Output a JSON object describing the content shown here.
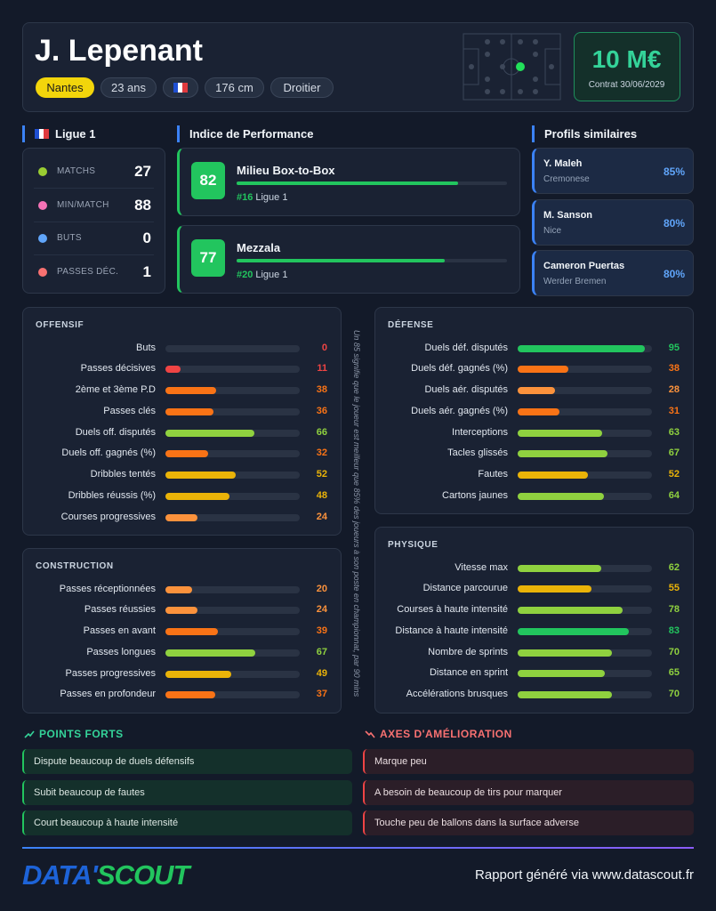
{
  "header": {
    "name": "J. Lepenant",
    "club": "Nantes",
    "age": "23 ans",
    "height": "176 cm",
    "foot": "Droitier",
    "value": "10 M€",
    "contract": "Contrat 30/06/2029"
  },
  "league": {
    "title": "Ligue 1",
    "stats": [
      {
        "label": "MATCHS",
        "value": 27
      },
      {
        "label": "MIN/MATCH",
        "value": 88
      },
      {
        "label": "BUTS",
        "value": 0
      },
      {
        "label": "PASSES DÉC.",
        "value": 1
      }
    ]
  },
  "performance": {
    "title": "Indice de Performance",
    "roles": [
      {
        "score": 82,
        "name": "Milieu Box-to-Box",
        "rank": "#16",
        "league": "Ligue 1"
      },
      {
        "score": 77,
        "name": "Mezzala",
        "rank": "#20",
        "league": "Ligue 1"
      }
    ]
  },
  "similar": {
    "title": "Profils similaires",
    "players": [
      {
        "name": "Y. Maleh",
        "club": "Cremonese",
        "match": "85%"
      },
      {
        "name": "M. Sanson",
        "club": "Nice",
        "match": "80%"
      },
      {
        "name": "Cameron Puertas",
        "club": "Werder Bremen",
        "match": "80%"
      }
    ]
  },
  "sections": [
    {
      "title": "OFFENSIF",
      "stats": [
        {
          "label": "Buts",
          "value": 0,
          "color": "#ef4444"
        },
        {
          "label": "Passes décisives",
          "value": 11,
          "color": "#ef4444"
        },
        {
          "label": "2ème et 3ème P.D",
          "value": 38,
          "color": "#f97316"
        },
        {
          "label": "Passes clés",
          "value": 36,
          "color": "#f97316"
        },
        {
          "label": "Duels off. disputés",
          "value": 66,
          "color": "#8fd13f"
        },
        {
          "label": "Duels off. gagnés (%)",
          "value": 32,
          "color": "#f97316"
        },
        {
          "label": "Dribbles tentés",
          "value": 52,
          "color": "#eab308"
        },
        {
          "label": "Dribbles réussis (%)",
          "value": 48,
          "color": "#eab308"
        },
        {
          "label": "Courses progressives",
          "value": 24,
          "color": "#fb923c"
        }
      ]
    },
    {
      "title": "CONSTRUCTION",
      "stats": [
        {
          "label": "Passes réceptionnées",
          "value": 20,
          "color": "#fb923c"
        },
        {
          "label": "Passes réussies",
          "value": 24,
          "color": "#fb923c"
        },
        {
          "label": "Passes en avant",
          "value": 39,
          "color": "#f97316"
        },
        {
          "label": "Passes longues",
          "value": 67,
          "color": "#8fd13f"
        },
        {
          "label": "Passes progressives",
          "value": 49,
          "color": "#eab308"
        },
        {
          "label": "Passes en profondeur",
          "value": 37,
          "color": "#f97316"
        }
      ]
    },
    {
      "title": "DÉFENSE",
      "stats": [
        {
          "label": "Duels déf. disputés",
          "value": 95,
          "color": "#22c55e"
        },
        {
          "label": "Duels déf. gagnés (%)",
          "value": 38,
          "color": "#f97316"
        },
        {
          "label": "Duels aér. disputés",
          "value": 28,
          "color": "#fb923c"
        },
        {
          "label": "Duels aér. gagnés (%)",
          "value": 31,
          "color": "#f97316"
        },
        {
          "label": "Interceptions",
          "value": 63,
          "color": "#8fd13f"
        },
        {
          "label": "Tacles glissés",
          "value": 67,
          "color": "#8fd13f"
        },
        {
          "label": "Fautes",
          "value": 52,
          "color": "#eab308"
        },
        {
          "label": "Cartons jaunes",
          "value": 64,
          "color": "#8fd13f"
        }
      ]
    },
    {
      "title": "PHYSIQUE",
      "stats": [
        {
          "label": "Vitesse max",
          "value": 62,
          "color": "#8fd13f"
        },
        {
          "label": "Distance parcourue",
          "value": 55,
          "color": "#eab308"
        },
        {
          "label": "Courses à haute intensité",
          "value": 78,
          "color": "#8fd13f"
        },
        {
          "label": "Distance à haute intensité",
          "value": 83,
          "color": "#22c55e"
        },
        {
          "label": "Nombre de sprints",
          "value": 70,
          "color": "#8fd13f"
        },
        {
          "label": "Distance en sprint",
          "value": 65,
          "color": "#8fd13f"
        },
        {
          "label": "Accélérations brusques",
          "value": 70,
          "color": "#8fd13f"
        }
      ]
    }
  ],
  "note": "Un 85 signifie que le joueur est meilleur que 85% des joueurs à son poste en championnat, par 90 mins",
  "strengths": {
    "title": "POINTS FORTS",
    "items": [
      "Dispute beaucoup de duels défensifs",
      "Subit beaucoup de fautes",
      "Court beaucoup à haute intensité"
    ]
  },
  "improvements": {
    "title": "AXES D'AMÉLIORATION",
    "items": [
      "Marque peu",
      "A besoin de beaucoup de tirs pour marquer",
      "Touche peu de ballons dans la surface adverse"
    ]
  },
  "footer": {
    "logo_a": "DATA'",
    "logo_b": "SCOUT",
    "text": "Rapport généré via www.datascout.fr"
  }
}
